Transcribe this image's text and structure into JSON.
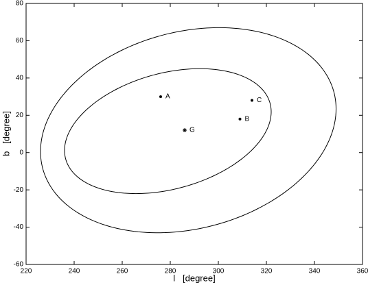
{
  "chart_data": {
    "type": "scatter",
    "xlabel": "l   [degree]",
    "ylabel": "b   [degree]",
    "xlim": [
      220,
      360
    ],
    "ylim": [
      -60,
      80
    ],
    "xticks": [
      220,
      240,
      260,
      280,
      300,
      320,
      340,
      360
    ],
    "yticks": [
      -60,
      -40,
      -20,
      0,
      20,
      40,
      60,
      80
    ],
    "color": "#000000",
    "points": {
      "labels": [
        "A",
        "B",
        "C",
        "G"
      ],
      "x": [
        276,
        309,
        314,
        286
      ],
      "y": [
        30,
        18,
        28,
        12
      ],
      "markers": [
        "dot",
        "dot",
        "dot",
        "star"
      ]
    },
    "ellipses": [
      {
        "cx": 287.5,
        "cy": 12,
        "ax": 61.5,
        "ay": 55,
        "phase": 12
      },
      {
        "cx": 279,
        "cy": 11.5,
        "ax": 43,
        "ay": 33.5,
        "phase": 18
      }
    ]
  }
}
